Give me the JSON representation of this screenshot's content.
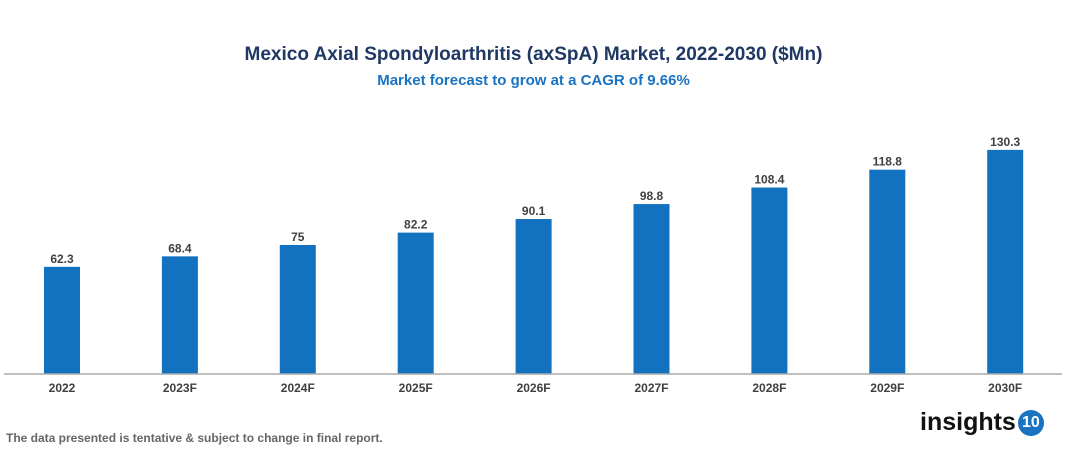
{
  "chart_data": {
    "type": "bar",
    "title": "Mexico Axial Spondyloarthritis (axSpA) Market, 2022-2030 ($Mn)",
    "subtitle": "Market forecast to grow at a CAGR of 9.66%",
    "categories": [
      "2022",
      "2023F",
      "2024F",
      "2025F",
      "2026F",
      "2027F",
      "2028F",
      "2029F",
      "2030F"
    ],
    "values": [
      62.3,
      68.4,
      75,
      82.2,
      90.1,
      98.8,
      108.4,
      118.8,
      130.3
    ],
    "labels": [
      "62.3",
      "68.4",
      "75",
      "82.2",
      "90.1",
      "98.8",
      "108.4",
      "118.8",
      "130.3"
    ],
    "xlabel": "",
    "ylabel": "",
    "ylim": [
      0,
      135
    ],
    "grid": false,
    "bar_color": "#1272bf"
  },
  "footer": "The data presented is tentative & subject to change in final report.",
  "logo": {
    "text": "insights",
    "badge": "10"
  }
}
